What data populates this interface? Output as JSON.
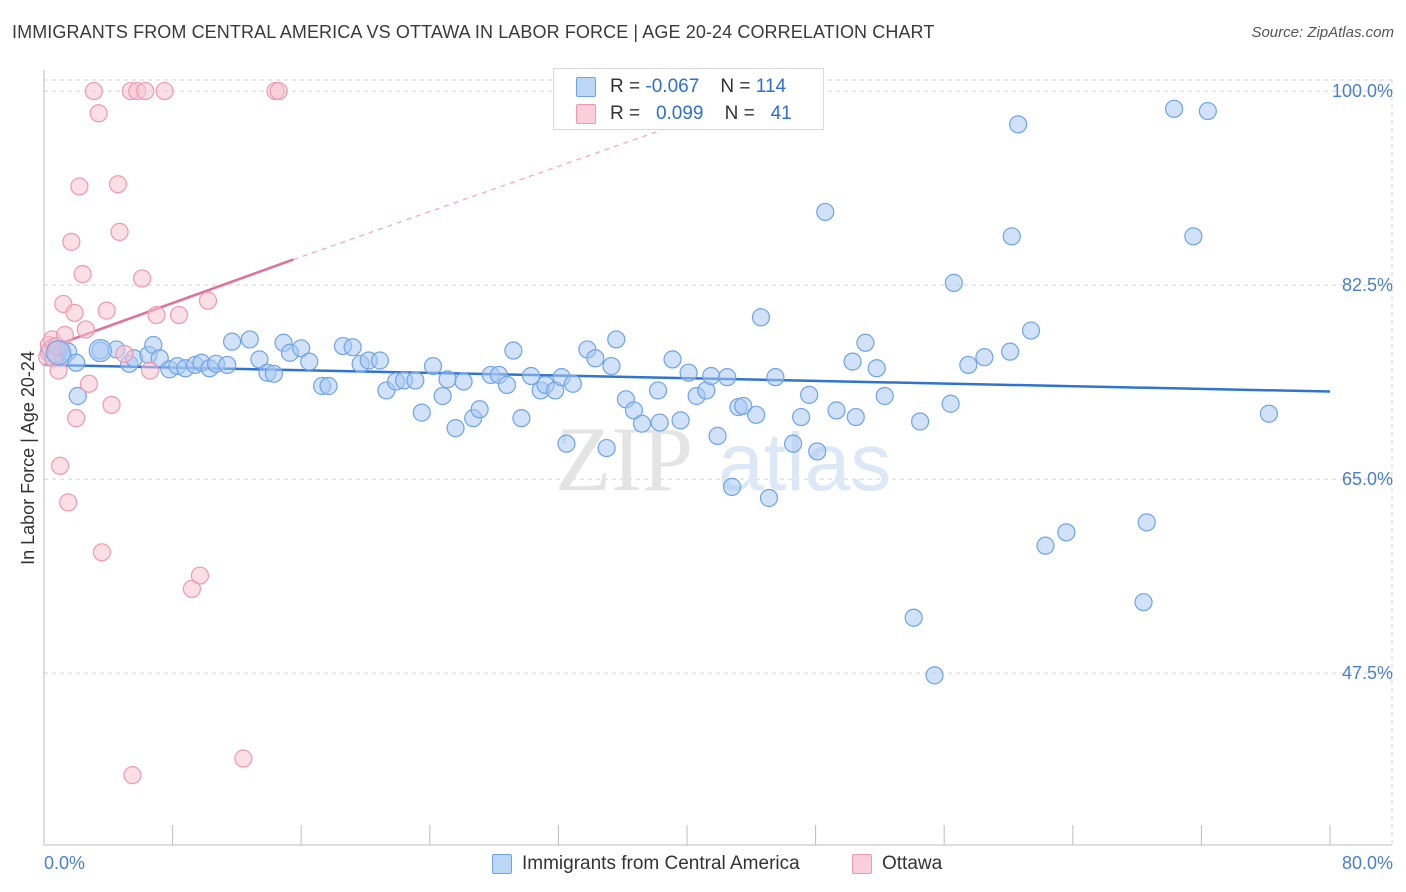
{
  "chart_data": {
    "type": "scatter",
    "title": "IMMIGRANTS FROM CENTRAL AMERICA VS OTTAWA IN LABOR FORCE | AGE 20-24 CORRELATION CHART",
    "source": "Source: ZipAtlas.com",
    "xlabel": "",
    "ylabel": "In Labor Force | Age 20-24",
    "xlim": [
      0,
      80
    ],
    "ylim": [
      32,
      101
    ],
    "y_ticks": [
      47.5,
      65.0,
      82.5,
      100.0
    ],
    "y_tick_labels": [
      "47.5%",
      "65.0%",
      "82.5%",
      "100.0%"
    ],
    "x_tick_labels": [
      "0.0%",
      "80.0%"
    ],
    "watermark": "ZIPatlas",
    "grid": true,
    "stats": [
      {
        "series": "Immigrants from Central America",
        "r_label": "R =",
        "r": "-0.067",
        "n_label": "N =",
        "n": "114"
      },
      {
        "series": "Ottawa",
        "r_label": "R =",
        "r": "0.099",
        "n_label": "N =",
        "n": "41"
      }
    ],
    "series": [
      {
        "name": "Immigrants from Central America",
        "color": "#6fa4e6",
        "fill": "#a9c9f2",
        "line_color": "#2f74d0",
        "trend": {
          "x0": 0,
          "y0": 75.3,
          "x1": 80,
          "y1": 72.9
        },
        "points": [
          [
            0.3,
            76.4
          ],
          [
            0.6,
            77.0
          ],
          [
            0.8,
            76.2
          ],
          [
            1.0,
            76.8
          ],
          [
            1.2,
            76.0
          ],
          [
            1.5,
            76.5
          ],
          [
            2.0,
            75.5
          ],
          [
            2.1,
            72.5
          ],
          [
            3.5,
            76.6
          ],
          [
            4.5,
            76.7
          ],
          [
            5.3,
            75.4
          ],
          [
            5.6,
            75.9
          ],
          [
            6.5,
            76.2
          ],
          [
            6.8,
            77.1
          ],
          [
            7.2,
            75.9
          ],
          [
            7.8,
            74.9
          ],
          [
            8.3,
            75.2
          ],
          [
            8.8,
            75.0
          ],
          [
            9.4,
            75.3
          ],
          [
            9.8,
            75.5
          ],
          [
            10.3,
            75.0
          ],
          [
            10.7,
            75.4
          ],
          [
            11.4,
            75.3
          ],
          [
            11.7,
            77.4
          ],
          [
            12.8,
            77.6
          ],
          [
            13.4,
            75.8
          ],
          [
            13.9,
            74.6
          ],
          [
            14.3,
            74.5
          ],
          [
            14.9,
            77.3
          ],
          [
            15.3,
            76.4
          ],
          [
            16.0,
            76.8
          ],
          [
            16.5,
            75.6
          ],
          [
            17.3,
            73.4
          ],
          [
            17.7,
            73.4
          ],
          [
            18.6,
            77.0
          ],
          [
            19.2,
            76.9
          ],
          [
            19.7,
            75.4
          ],
          [
            20.2,
            75.7
          ],
          [
            20.9,
            75.7
          ],
          [
            21.3,
            73.0
          ],
          [
            21.9,
            73.8
          ],
          [
            22.4,
            73.9
          ],
          [
            23.1,
            73.9
          ],
          [
            23.5,
            71.0
          ],
          [
            24.2,
            75.2
          ],
          [
            24.8,
            72.5
          ],
          [
            25.1,
            74.0
          ],
          [
            25.6,
            69.6
          ],
          [
            26.1,
            73.8
          ],
          [
            26.7,
            70.5
          ],
          [
            27.1,
            71.3
          ],
          [
            27.8,
            74.4
          ],
          [
            28.3,
            74.4
          ],
          [
            28.8,
            73.5
          ],
          [
            29.2,
            76.6
          ],
          [
            29.7,
            70.5
          ],
          [
            30.3,
            74.3
          ],
          [
            30.9,
            73.0
          ],
          [
            31.2,
            73.5
          ],
          [
            31.8,
            73.0
          ],
          [
            32.2,
            74.2
          ],
          [
            32.5,
            68.2
          ],
          [
            32.9,
            73.6
          ],
          [
            33.8,
            76.7
          ],
          [
            34.3,
            75.9
          ],
          [
            35.0,
            67.8
          ],
          [
            35.3,
            75.2
          ],
          [
            35.6,
            77.6
          ],
          [
            36.2,
            72.2
          ],
          [
            36.7,
            71.2
          ],
          [
            37.2,
            70.0
          ],
          [
            38.2,
            73.0
          ],
          [
            38.3,
            70.1
          ],
          [
            39.1,
            75.8
          ],
          [
            39.6,
            70.3
          ],
          [
            40.1,
            74.6
          ],
          [
            40.6,
            72.5
          ],
          [
            41.2,
            73.0
          ],
          [
            41.5,
            74.3
          ],
          [
            41.9,
            68.9
          ],
          [
            42.5,
            74.2
          ],
          [
            42.8,
            64.3
          ],
          [
            43.2,
            71.5
          ],
          [
            43.5,
            71.6
          ],
          [
            44.3,
            70.8
          ],
          [
            44.6,
            79.6
          ],
          [
            45.1,
            63.3
          ],
          [
            45.5,
            74.2
          ],
          [
            46.6,
            68.2
          ],
          [
            47.1,
            70.6
          ],
          [
            47.6,
            72.6
          ],
          [
            48.1,
            67.5
          ],
          [
            48.6,
            89.1
          ],
          [
            49.3,
            71.2
          ],
          [
            50.3,
            75.6
          ],
          [
            50.5,
            70.6
          ],
          [
            51.1,
            77.3
          ],
          [
            51.8,
            75.0
          ],
          [
            52.3,
            72.5
          ],
          [
            54.1,
            52.5
          ],
          [
            54.5,
            70.2
          ],
          [
            55.4,
            47.3
          ],
          [
            56.4,
            71.8
          ],
          [
            56.6,
            82.7
          ],
          [
            57.5,
            75.3
          ],
          [
            58.5,
            76.0
          ],
          [
            60.1,
            76.5
          ],
          [
            60.2,
            86.9
          ],
          [
            60.6,
            97.0
          ],
          [
            61.4,
            78.4
          ],
          [
            62.3,
            59.0
          ],
          [
            63.6,
            60.2
          ],
          [
            68.4,
            53.9
          ],
          [
            68.6,
            61.1
          ],
          [
            70.3,
            98.4
          ],
          [
            71.5,
            86.9
          ],
          [
            72.4,
            98.2
          ],
          [
            76.2,
            70.9
          ]
        ]
      },
      {
        "name": "Ottawa",
        "color": "#ef98b4",
        "fill": "#f7c4d4",
        "line_color": "#e2709a",
        "trend": {
          "x0": 0,
          "y0": 76.7,
          "x1": 15.5,
          "y1": 84.8
        },
        "trend_ext": {
          "x0": 15.5,
          "y0": 84.8,
          "x1": 40.0,
          "y1": 97.3
        },
        "points": [
          [
            0.2,
            76.0
          ],
          [
            0.3,
            77.1
          ],
          [
            0.4,
            76.7
          ],
          [
            0.5,
            77.6
          ],
          [
            0.6,
            75.9
          ],
          [
            0.8,
            77.0
          ],
          [
            0.9,
            74.8
          ],
          [
            1.0,
            66.2
          ],
          [
            1.2,
            80.8
          ],
          [
            1.3,
            78.0
          ],
          [
            1.5,
            62.9
          ],
          [
            1.7,
            86.4
          ],
          [
            1.9,
            80.0
          ],
          [
            2.0,
            70.5
          ],
          [
            2.2,
            91.4
          ],
          [
            2.4,
            83.5
          ],
          [
            2.6,
            78.5
          ],
          [
            2.8,
            73.6
          ],
          [
            3.1,
            100.0
          ],
          [
            3.4,
            98.0
          ],
          [
            3.6,
            58.4
          ],
          [
            3.9,
            80.2
          ],
          [
            4.2,
            71.7
          ],
          [
            4.6,
            91.6
          ],
          [
            4.7,
            87.3
          ],
          [
            5.0,
            76.3
          ],
          [
            5.4,
            100.0
          ],
          [
            5.8,
            100.0
          ],
          [
            6.1,
            83.1
          ],
          [
            6.3,
            100.0
          ],
          [
            6.6,
            74.8
          ],
          [
            7.0,
            79.8
          ],
          [
            7.5,
            100.0
          ],
          [
            8.4,
            79.8
          ],
          [
            9.2,
            55.1
          ],
          [
            9.7,
            56.3
          ],
          [
            10.2,
            81.1
          ],
          [
            12.4,
            39.8
          ],
          [
            14.4,
            100.0
          ],
          [
            14.6,
            100.0
          ],
          [
            5.5,
            38.3
          ]
        ]
      }
    ]
  }
}
